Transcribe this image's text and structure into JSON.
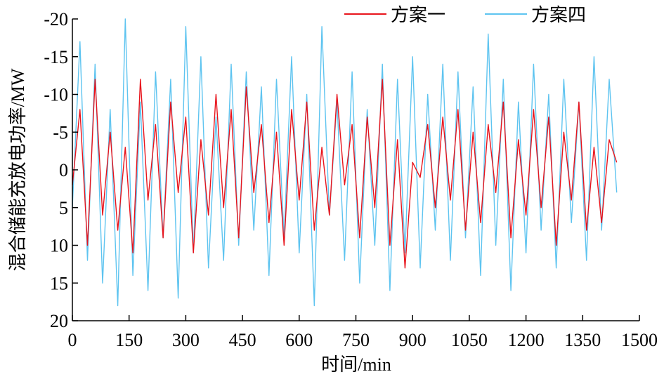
{
  "chart_data": {
    "type": "line",
    "xlabel": "时间/min",
    "ylabel": "混合储能充放电功率/MW",
    "x": [
      0,
      20,
      40,
      60,
      80,
      100,
      120,
      140,
      160,
      180,
      200,
      220,
      240,
      260,
      280,
      300,
      320,
      340,
      360,
      380,
      400,
      420,
      440,
      460,
      480,
      500,
      520,
      540,
      560,
      580,
      600,
      620,
      640,
      660,
      680,
      700,
      720,
      740,
      760,
      780,
      800,
      820,
      840,
      860,
      880,
      900,
      920,
      940,
      960,
      980,
      1000,
      1020,
      1040,
      1060,
      1080,
      1100,
      1120,
      1140,
      1160,
      1180,
      1200,
      1220,
      1240,
      1260,
      1280,
      1300,
      1320,
      1340,
      1360,
      1380,
      1400,
      1420,
      1440
    ],
    "series": [
      {
        "name": "方案一",
        "color": "#e8141c",
        "values": [
          2,
          -8,
          10,
          -12,
          6,
          -5,
          8,
          -3,
          11,
          -12,
          4,
          -6,
          9,
          -9,
          3,
          -7,
          11,
          -4,
          6,
          -10,
          5,
          -8,
          9,
          -11,
          3,
          -6,
          7,
          -5,
          10,
          -8,
          4,
          -9,
          8,
          -3,
          6,
          -10,
          2,
          -6,
          9,
          -7,
          5,
          -12,
          10,
          -4,
          13,
          -1,
          1,
          -6,
          5,
          -7,
          4,
          -8,
          8,
          -5,
          7,
          -6,
          3,
          -9,
          9,
          -4,
          6,
          -8,
          5,
          -7,
          10,
          -5,
          4,
          -9,
          8,
          -3,
          7,
          -4,
          -1
        ]
      },
      {
        "name": "方案四",
        "color": "#5ec4f0",
        "values": [
          5,
          -17,
          12,
          -14,
          15,
          -8,
          18,
          -20,
          14,
          -9,
          16,
          -13,
          9,
          -12,
          17,
          -19,
          11,
          -15,
          13,
          -7,
          12,
          -14,
          10,
          -13,
          8,
          -11,
          14,
          -12,
          9,
          -15,
          11,
          -10,
          18,
          -19,
          6,
          -9,
          12,
          -13,
          15,
          -8,
          10,
          -14,
          16,
          -12,
          11,
          -15,
          13,
          -10,
          8,
          -14,
          12,
          -13,
          9,
          -11,
          14,
          -18,
          10,
          -12,
          16,
          -9,
          11,
          -14,
          8,
          -10,
          13,
          -12,
          7,
          -9,
          12,
          -15,
          8,
          -12,
          3
        ]
      }
    ],
    "xlim": [
      0,
      1500
    ],
    "xticks": [
      0,
      150,
      300,
      450,
      600,
      750,
      900,
      1050,
      1200,
      1350,
      1500
    ],
    "ylim": [
      20,
      -20
    ],
    "yticks": [
      -20,
      -15,
      -10,
      -5,
      0,
      5,
      10,
      15,
      20
    ],
    "legend": "top-right"
  }
}
